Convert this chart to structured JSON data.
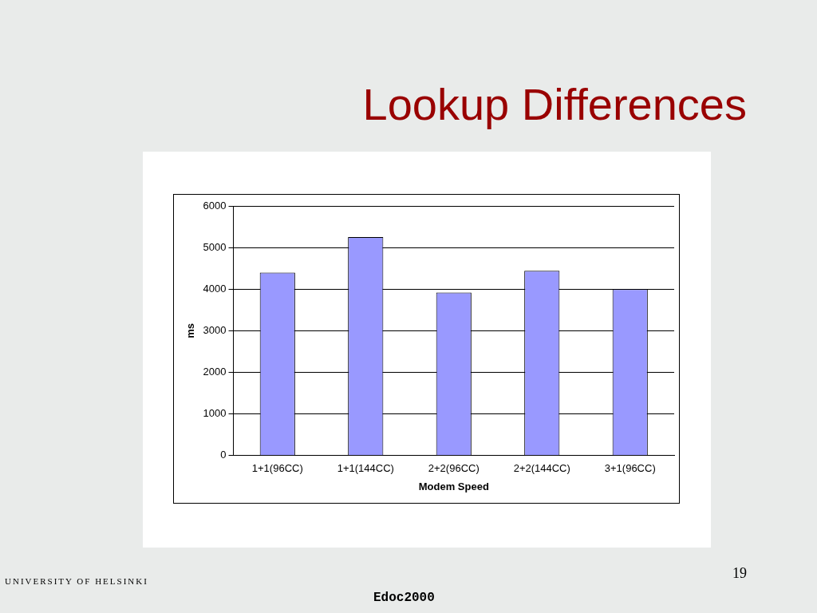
{
  "chart_data": {
    "type": "bar",
    "title": "Lookup Differences",
    "xlabel": "Modem Speed",
    "ylabel": "ms",
    "categories": [
      "1+1(96CC)",
      "1+1(144CC)",
      "2+2(96CC)",
      "2+2(144CC)",
      "3+1(96CC)"
    ],
    "values": [
      4400,
      5250,
      3920,
      4440,
      4000
    ],
    "color": "#9999ff",
    "ylim": [
      0,
      6000
    ],
    "yticks": [
      0,
      1000,
      2000,
      3000,
      4000,
      5000,
      6000
    ],
    "grid": "y",
    "legend": false,
    "annotations": [
      "UNIVERSITY OF HELSINKI",
      "19",
      "Edoc2000"
    ]
  }
}
